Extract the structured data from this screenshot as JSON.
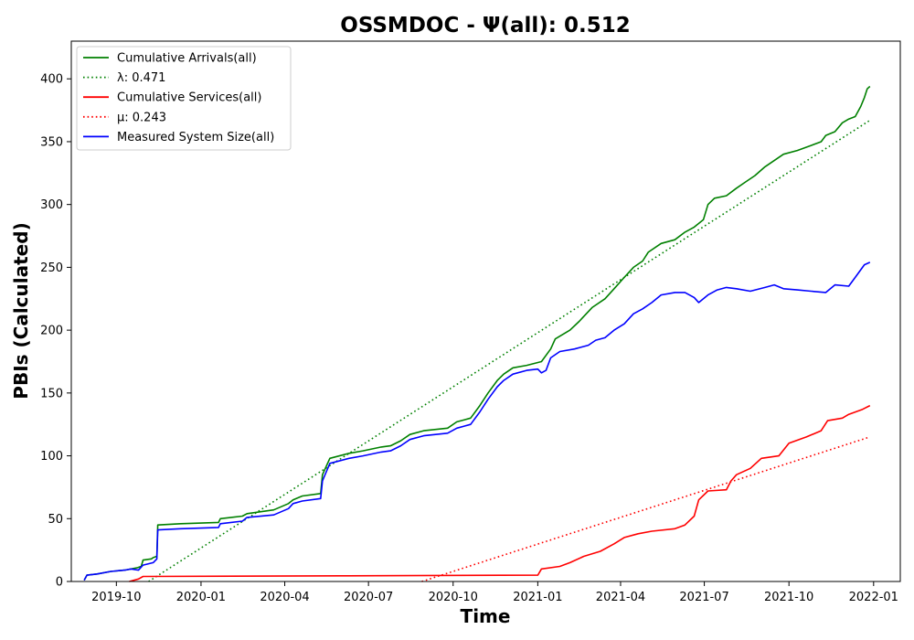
{
  "chart_data": {
    "type": "line",
    "title": "OSSMDOC -  Ψ(all): 0.512",
    "xlabel": "Time",
    "ylabel": "PBIs (Calculated)",
    "xlim": [
      "2019-08-13",
      "2022-01-30"
    ],
    "ylim": [
      0,
      430
    ],
    "x_ticks": [
      "2019-10",
      "2020-01",
      "2020-04",
      "2020-07",
      "2020-10",
      "2021-01",
      "2021-04",
      "2021-07",
      "2021-10",
      "2022-01"
    ],
    "y_ticks": [
      0,
      50,
      100,
      150,
      200,
      250,
      300,
      350,
      400
    ],
    "grid": false,
    "legend_position": "top-left",
    "series": [
      {
        "name": "Cumulative Arrivals(all)",
        "style": "solid",
        "color": "#008000",
        "points": [
          [
            "2019-08-27",
            1
          ],
          [
            "2019-08-30",
            5
          ],
          [
            "2019-09-10",
            6
          ],
          [
            "2019-09-25",
            8
          ],
          [
            "2019-10-10",
            9
          ],
          [
            "2019-10-17",
            10
          ],
          [
            "2019-10-24",
            11
          ],
          [
            "2019-10-28",
            12
          ],
          [
            "2019-10-30",
            17
          ],
          [
            "2019-11-08",
            18
          ],
          [
            "2019-11-10",
            19
          ],
          [
            "2019-11-14",
            20
          ],
          [
            "2019-11-15",
            45
          ],
          [
            "2019-12-10",
            46
          ],
          [
            "2020-01-20",
            47
          ],
          [
            "2020-01-22",
            50
          ],
          [
            "2020-02-15",
            52
          ],
          [
            "2020-02-20",
            54
          ],
          [
            "2020-03-20",
            57
          ],
          [
            "2020-04-05",
            62
          ],
          [
            "2020-04-10",
            65
          ],
          [
            "2020-04-20",
            68
          ],
          [
            "2020-05-10",
            70
          ],
          [
            "2020-05-12",
            85
          ],
          [
            "2020-05-20",
            98
          ],
          [
            "2020-06-10",
            102
          ],
          [
            "2020-06-25",
            104
          ],
          [
            "2020-07-15",
            107
          ],
          [
            "2020-07-25",
            108
          ],
          [
            "2020-08-05",
            112
          ],
          [
            "2020-08-15",
            117
          ],
          [
            "2020-08-30",
            120
          ],
          [
            "2020-09-25",
            122
          ],
          [
            "2020-10-05",
            127
          ],
          [
            "2020-10-20",
            130
          ],
          [
            "2020-10-30",
            140
          ],
          [
            "2020-11-08",
            150
          ],
          [
            "2020-11-18",
            160
          ],
          [
            "2020-11-25",
            165
          ],
          [
            "2020-12-05",
            170
          ],
          [
            "2020-12-20",
            172
          ],
          [
            "2021-01-05",
            175
          ],
          [
            "2021-01-15",
            185
          ],
          [
            "2021-01-20",
            193
          ],
          [
            "2021-02-05",
            200
          ],
          [
            "2021-02-15",
            207
          ],
          [
            "2021-03-01",
            218
          ],
          [
            "2021-03-15",
            225
          ],
          [
            "2021-03-25",
            233
          ],
          [
            "2021-04-05",
            242
          ],
          [
            "2021-04-15",
            250
          ],
          [
            "2021-04-25",
            255
          ],
          [
            "2021-05-01",
            262
          ],
          [
            "2021-05-15",
            269
          ],
          [
            "2021-05-30",
            272
          ],
          [
            "2021-06-10",
            278
          ],
          [
            "2021-06-20",
            282
          ],
          [
            "2021-06-30",
            288
          ],
          [
            "2021-07-05",
            300
          ],
          [
            "2021-07-12",
            305
          ],
          [
            "2021-07-25",
            307
          ],
          [
            "2021-08-05",
            313
          ],
          [
            "2021-08-15",
            318
          ],
          [
            "2021-08-25",
            323
          ],
          [
            "2021-09-05",
            330
          ],
          [
            "2021-09-15",
            335
          ],
          [
            "2021-09-25",
            340
          ],
          [
            "2021-10-10",
            343
          ],
          [
            "2021-10-25",
            347
          ],
          [
            "2021-11-05",
            350
          ],
          [
            "2021-11-10",
            355
          ],
          [
            "2021-11-20",
            358
          ],
          [
            "2021-11-28",
            365
          ],
          [
            "2021-12-05",
            368
          ],
          [
            "2021-12-12",
            370
          ],
          [
            "2021-12-18",
            378
          ],
          [
            "2021-12-22",
            385
          ],
          [
            "2021-12-25",
            392
          ],
          [
            "2021-12-28",
            394
          ]
        ]
      },
      {
        "name": "λ: 0.471",
        "style": "dotted",
        "color": "#008000",
        "points": [
          [
            "2019-11-05",
            0
          ],
          [
            "2021-12-28",
            367
          ]
        ]
      },
      {
        "name": "Cumulative Services(all)",
        "style": "solid",
        "color": "#ff0000",
        "points": [
          [
            "2019-10-15",
            0
          ],
          [
            "2019-10-25",
            2
          ],
          [
            "2019-10-30",
            4
          ],
          [
            "2020-06-01",
            4.5
          ],
          [
            "2021-01-01",
            5
          ],
          [
            "2021-01-05",
            10
          ],
          [
            "2021-01-25",
            12
          ],
          [
            "2021-02-05",
            15
          ],
          [
            "2021-02-20",
            20
          ],
          [
            "2021-03-10",
            24
          ],
          [
            "2021-03-25",
            30
          ],
          [
            "2021-04-05",
            35
          ],
          [
            "2021-04-20",
            38
          ],
          [
            "2021-05-05",
            40
          ],
          [
            "2021-05-30",
            42
          ],
          [
            "2021-06-10",
            45
          ],
          [
            "2021-06-20",
            52
          ],
          [
            "2021-06-25",
            65
          ],
          [
            "2021-07-05",
            72
          ],
          [
            "2021-07-25",
            73
          ],
          [
            "2021-07-30",
            80
          ],
          [
            "2021-08-05",
            85
          ],
          [
            "2021-08-20",
            90
          ],
          [
            "2021-09-01",
            98
          ],
          [
            "2021-09-20",
            100
          ],
          [
            "2021-10-01",
            110
          ],
          [
            "2021-10-20",
            115
          ],
          [
            "2021-11-05",
            120
          ],
          [
            "2021-11-12",
            128
          ],
          [
            "2021-11-28",
            130
          ],
          [
            "2021-12-05",
            133
          ],
          [
            "2021-12-20",
            137
          ],
          [
            "2021-12-28",
            140
          ]
        ]
      },
      {
        "name": "μ: 0.243",
        "style": "dotted",
        "color": "#ff0000",
        "points": [
          [
            "2020-08-28",
            0
          ],
          [
            "2021-12-28",
            115
          ]
        ]
      },
      {
        "name": "Measured System Size(all)",
        "style": "solid",
        "color": "#0000ff",
        "points": [
          [
            "2019-08-27",
            1
          ],
          [
            "2019-08-30",
            5
          ],
          [
            "2019-09-10",
            6
          ],
          [
            "2019-09-25",
            8
          ],
          [
            "2019-10-10",
            9
          ],
          [
            "2019-10-17",
            10
          ],
          [
            "2019-10-25",
            9
          ],
          [
            "2019-10-30",
            13
          ],
          [
            "2019-11-10",
            15
          ],
          [
            "2019-11-14",
            18
          ],
          [
            "2019-11-15",
            41
          ],
          [
            "2019-12-10",
            42
          ],
          [
            "2020-01-20",
            43
          ],
          [
            "2020-01-22",
            46
          ],
          [
            "2020-02-15",
            48
          ],
          [
            "2020-02-20",
            51
          ],
          [
            "2020-03-20",
            53
          ],
          [
            "2020-04-05",
            58
          ],
          [
            "2020-04-10",
            62
          ],
          [
            "2020-04-20",
            64
          ],
          [
            "2020-05-10",
            66
          ],
          [
            "2020-05-12",
            80
          ],
          [
            "2020-05-20",
            94
          ],
          [
            "2020-06-10",
            98
          ],
          [
            "2020-06-25",
            100
          ],
          [
            "2020-07-15",
            103
          ],
          [
            "2020-07-25",
            104
          ],
          [
            "2020-08-05",
            108
          ],
          [
            "2020-08-15",
            113
          ],
          [
            "2020-08-30",
            116
          ],
          [
            "2020-09-25",
            118
          ],
          [
            "2020-10-05",
            122
          ],
          [
            "2020-10-20",
            125
          ],
          [
            "2020-10-30",
            135
          ],
          [
            "2020-11-08",
            145
          ],
          [
            "2020-11-18",
            155
          ],
          [
            "2020-11-25",
            160
          ],
          [
            "2020-12-05",
            165
          ],
          [
            "2020-12-20",
            168
          ],
          [
            "2021-01-01",
            169
          ],
          [
            "2021-01-05",
            166
          ],
          [
            "2021-01-10",
            168
          ],
          [
            "2021-01-15",
            178
          ],
          [
            "2021-01-25",
            183
          ],
          [
            "2021-02-10",
            185
          ],
          [
            "2021-02-25",
            188
          ],
          [
            "2021-03-05",
            192
          ],
          [
            "2021-03-15",
            194
          ],
          [
            "2021-03-25",
            200
          ],
          [
            "2021-04-05",
            205
          ],
          [
            "2021-04-15",
            213
          ],
          [
            "2021-04-25",
            217
          ],
          [
            "2021-05-05",
            222
          ],
          [
            "2021-05-15",
            228
          ],
          [
            "2021-05-30",
            230
          ],
          [
            "2021-06-10",
            230
          ],
          [
            "2021-06-20",
            226
          ],
          [
            "2021-06-25",
            222
          ],
          [
            "2021-07-05",
            228
          ],
          [
            "2021-07-15",
            232
          ],
          [
            "2021-07-25",
            234
          ],
          [
            "2021-08-05",
            233
          ],
          [
            "2021-08-20",
            231
          ],
          [
            "2021-09-05",
            234
          ],
          [
            "2021-09-15",
            236
          ],
          [
            "2021-09-25",
            233
          ],
          [
            "2021-10-10",
            232
          ],
          [
            "2021-10-25",
            231
          ],
          [
            "2021-11-10",
            230
          ],
          [
            "2021-11-20",
            236
          ],
          [
            "2021-12-05",
            235
          ],
          [
            "2021-12-12",
            242
          ],
          [
            "2021-12-18",
            248
          ],
          [
            "2021-12-22",
            252
          ],
          [
            "2021-12-28",
            254
          ]
        ]
      }
    ]
  }
}
